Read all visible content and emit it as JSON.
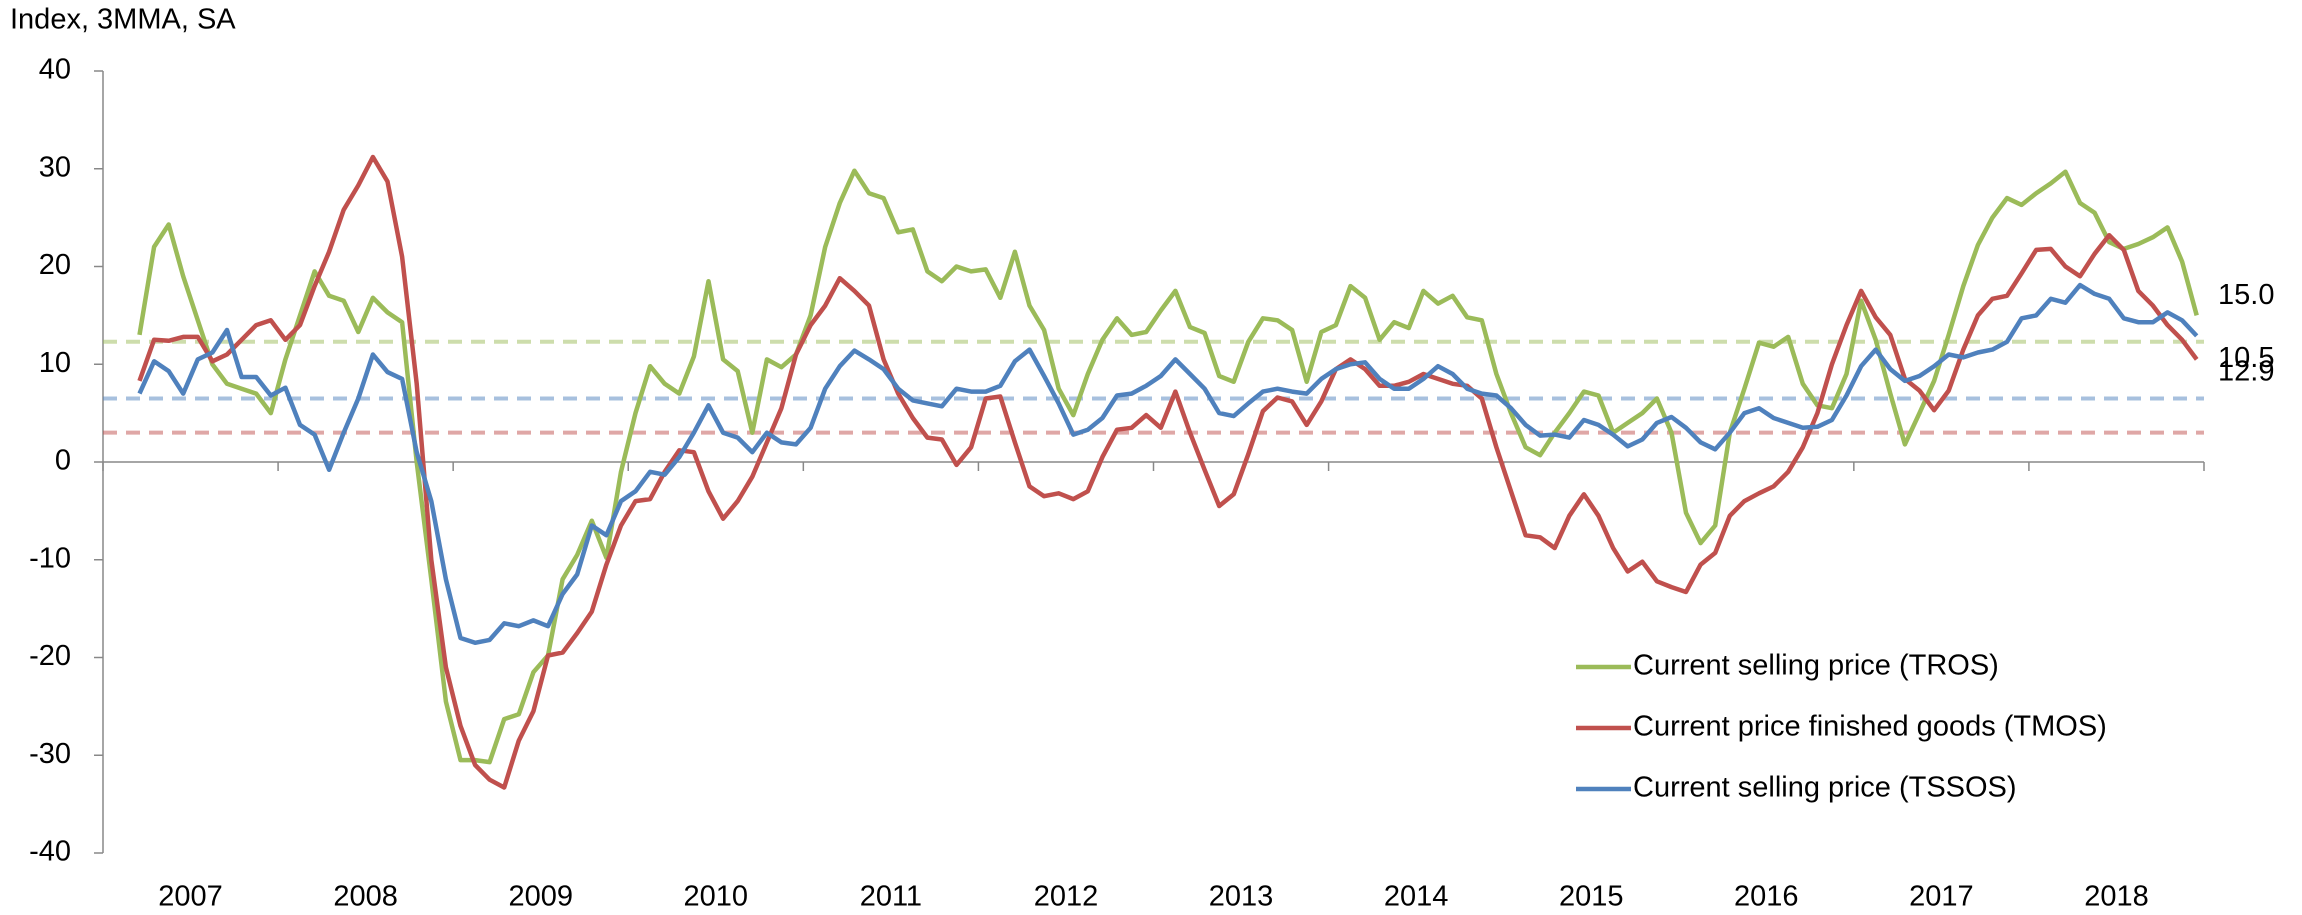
{
  "chart_data": {
    "type": "line",
    "y_axis_label": "Index, 3MMA, SA",
    "ylim": [
      -40,
      40
    ],
    "yticks": [
      -40,
      -30,
      -20,
      -10,
      0,
      10,
      20,
      30,
      40
    ],
    "categories": [
      null,
      null,
      null,
      null,
      "2007",
      null,
      null,
      null,
      null,
      null,
      null,
      null,
      null,
      null,
      null,
      null,
      "2008",
      null,
      null,
      null,
      null,
      null,
      null,
      null,
      null,
      null,
      null,
      null,
      "2009",
      null,
      null,
      null,
      null,
      null,
      null,
      null,
      null,
      null,
      null,
      null,
      "2010",
      null,
      null,
      null,
      null,
      null,
      null,
      null,
      null,
      null,
      null,
      null,
      "2011",
      null,
      null,
      null,
      null,
      null,
      null,
      null,
      null,
      null,
      null,
      null,
      "2012",
      null,
      null,
      null,
      null,
      null,
      null,
      null,
      null,
      null,
      null,
      null,
      "2013",
      null,
      null,
      null,
      null,
      null,
      null,
      null,
      null,
      null,
      null,
      null,
      "2014",
      null,
      null,
      null,
      null,
      null,
      null,
      null,
      null,
      null,
      null,
      null,
      "2015",
      null,
      null,
      null,
      null,
      null,
      null,
      null,
      null,
      null,
      null,
      null,
      "2016",
      null,
      null,
      null,
      null,
      null,
      null,
      null,
      null,
      null,
      null,
      null,
      "2017",
      null,
      null,
      null,
      null,
      null,
      null,
      null,
      null,
      null,
      null,
      null,
      "2018",
      null,
      null,
      null,
      null,
      null
    ],
    "reference_lines": [
      {
        "color": "#9bbb59",
        "value": 12.3
      },
      {
        "color": "#4f81bd",
        "value": 6.5
      },
      {
        "color": "#c0504d",
        "value": 3
      }
    ],
    "series": [
      {
        "name": "Current selling price (TROS)",
        "color": "#9bbb59",
        "values": [
          13,
          22,
          24.3,
          19,
          14.5,
          10,
          8,
          7.5,
          7,
          5,
          10.5,
          15,
          19.5,
          17,
          16.5,
          13.3,
          16.8,
          15.3,
          14.3,
          0,
          -12,
          -24.5,
          -30.5,
          -30.5,
          -30.7,
          -26.3,
          -25.8,
          -21.5,
          -19.8,
          -12,
          -9.5,
          -6,
          -9.8,
          -1,
          5,
          9.8,
          8,
          7,
          10.8,
          18.5,
          10.5,
          9.3,
          3,
          10.5,
          9.7,
          11,
          15,
          22,
          26.5,
          29.8,
          27.5,
          27,
          23.5,
          23.8,
          19.5,
          18.5,
          20,
          19.5,
          19.7,
          16.8,
          21.5,
          16,
          13.5,
          7.5,
          4.8,
          9,
          12.5,
          14.7,
          13,
          13.3,
          15.5,
          17.5,
          13.8,
          13.2,
          8.8,
          8.2,
          12.3,
          14.7,
          14.5,
          13.5,
          8.2,
          13.3,
          14,
          18,
          16.8,
          12.5,
          14.3,
          13.7,
          17.5,
          16.2,
          17,
          14.8,
          14.5,
          9,
          5,
          1.5,
          0.7,
          3,
          5,
          7.2,
          6.8,
          3,
          4,
          5,
          6.5,
          3,
          -5.2,
          -8.3,
          -6.5,
          3,
          7.5,
          12.2,
          11.8,
          12.8,
          8,
          5.8,
          5.5,
          9,
          16.5,
          12.5,
          7,
          1.8,
          5,
          8.3,
          13,
          18,
          22.2,
          25,
          27,
          26.3,
          27.5,
          28.5,
          29.7,
          26.5,
          25.5,
          22.5,
          21.8,
          22.3,
          23,
          24,
          20.5,
          15
        ],
        "value_labels": [
          null,
          null,
          null,
          null,
          null,
          null,
          null,
          null,
          null,
          null,
          null,
          null,
          null,
          null,
          null,
          null,
          null,
          null,
          null,
          null,
          null,
          null,
          null,
          null,
          null,
          null,
          null,
          null,
          null,
          null,
          null,
          null,
          null,
          null,
          null,
          null,
          null,
          null,
          null,
          null,
          null,
          null,
          null,
          null,
          null,
          null,
          null,
          null,
          null,
          null,
          null,
          null,
          null,
          null,
          null,
          null,
          null,
          null,
          null,
          null,
          null,
          null,
          null,
          null,
          null,
          null,
          null,
          null,
          null,
          null,
          null,
          null,
          null,
          null,
          null,
          null,
          null,
          null,
          null,
          null,
          null,
          null,
          null,
          null,
          null,
          null,
          null,
          null,
          null,
          null,
          null,
          null,
          null,
          null,
          null,
          null,
          null,
          null,
          null,
          null,
          null,
          null,
          null,
          null,
          null,
          null,
          null,
          null,
          null,
          null,
          null,
          null,
          null,
          null,
          null,
          null,
          null,
          null,
          null,
          null,
          null,
          null,
          null,
          null,
          null,
          null,
          null,
          null,
          null,
          null,
          null,
          null,
          null,
          null,
          null,
          null,
          null,
          null,
          null,
          null,
          null,
          "15.0"
        ]
      },
      {
        "name": "Current price finished goods (TMOS)",
        "color": "#c0504d",
        "values": [
          8.3,
          12.5,
          12.4,
          12.8,
          12.8,
          10.3,
          11,
          12.5,
          14,
          14.5,
          12.5,
          14,
          18,
          21.5,
          25.8,
          28.3,
          31.2,
          28.7,
          21,
          8,
          -10,
          -21,
          -27,
          -31,
          -32.5,
          -33.3,
          -28.5,
          -25.5,
          -19.8,
          -19.5,
          -17.5,
          -15.3,
          -10.5,
          -6.5,
          -4,
          -3.8,
          -1,
          1.2,
          1,
          -3,
          -5.8,
          -4,
          -1.5,
          2,
          5.5,
          11,
          14,
          16,
          18.8,
          17.5,
          16,
          10.5,
          7,
          4.5,
          2.5,
          2.3,
          -0.3,
          1.5,
          6.5,
          6.7,
          2,
          -2.5,
          -3.5,
          -3.2,
          -3.8,
          -3,
          0.5,
          3.3,
          3.5,
          4.8,
          3.5,
          7.2,
          3,
          -0.8,
          -4.5,
          -3.3,
          0.8,
          5.2,
          6.6,
          6.2,
          3.8,
          6.2,
          9.5,
          10.5,
          9.5,
          7.8,
          7.8,
          8.2,
          9,
          8.5,
          8,
          7.8,
          6.5,
          1.5,
          -3,
          -7.5,
          -7.7,
          -8.8,
          -5.5,
          -3.3,
          -5.5,
          -8.8,
          -11.2,
          -10.2,
          -12.2,
          -12.8,
          -13.3,
          -10.5,
          -9.3,
          -5.5,
          -4,
          -3.2,
          -2.5,
          -1,
          1.5,
          5,
          10,
          14,
          17.5,
          14.8,
          13,
          8.5,
          7.3,
          5.3,
          7.3,
          11.5,
          15,
          16.7,
          17,
          19.3,
          21.7,
          21.8,
          20,
          19,
          21.3,
          23.2,
          21.7,
          17.5,
          16,
          14,
          12.5,
          10.5
        ],
        "value_labels": [
          null,
          null,
          null,
          null,
          null,
          null,
          null,
          null,
          null,
          null,
          null,
          null,
          null,
          null,
          null,
          null,
          null,
          null,
          null,
          null,
          null,
          null,
          null,
          null,
          null,
          null,
          null,
          null,
          null,
          null,
          null,
          null,
          null,
          null,
          null,
          null,
          null,
          null,
          null,
          null,
          null,
          null,
          null,
          null,
          null,
          null,
          null,
          null,
          null,
          null,
          null,
          null,
          null,
          null,
          null,
          null,
          null,
          null,
          null,
          null,
          null,
          null,
          null,
          null,
          null,
          null,
          null,
          null,
          null,
          null,
          null,
          null,
          null,
          null,
          null,
          null,
          null,
          null,
          null,
          null,
          null,
          null,
          null,
          null,
          null,
          null,
          null,
          null,
          null,
          null,
          null,
          null,
          null,
          null,
          null,
          null,
          null,
          null,
          null,
          null,
          null,
          null,
          null,
          null,
          null,
          null,
          null,
          null,
          null,
          null,
          null,
          null,
          null,
          null,
          null,
          null,
          null,
          null,
          null,
          null,
          null,
          null,
          null,
          null,
          null,
          null,
          null,
          null,
          null,
          null,
          null,
          null,
          null,
          null,
          null,
          null,
          null,
          null,
          null,
          null,
          null,
          "10.5"
        ]
      },
      {
        "name": "Current selling price (TSSOS)",
        "color": "#4f81bd",
        "values": [
          7,
          10.3,
          9.3,
          7,
          10.5,
          11.2,
          13.5,
          8.7,
          8.7,
          6.8,
          7.6,
          3.8,
          2.8,
          -0.8,
          3,
          6.5,
          11,
          9.2,
          8.5,
          1,
          -4,
          -12,
          -18,
          -18.5,
          -18.2,
          -16.5,
          -16.8,
          -16.2,
          -16.8,
          -13.5,
          -11.5,
          -6.5,
          -7.5,
          -4,
          -3,
          -1,
          -1.3,
          0.5,
          3,
          5.8,
          3,
          2.5,
          1,
          3,
          2,
          1.8,
          3.5,
          7.5,
          9.8,
          11.4,
          10.5,
          9.5,
          7.5,
          6.3,
          6,
          5.7,
          7.5,
          7.2,
          7.2,
          7.8,
          10.3,
          11.5,
          8.8,
          6,
          2.8,
          3.3,
          4.5,
          6.8,
          7,
          7.8,
          8.8,
          10.5,
          9,
          7.5,
          5,
          4.7,
          6,
          7.2,
          7.5,
          7.2,
          7,
          8.5,
          9.5,
          10,
          10.2,
          8.5,
          7.5,
          7.5,
          8.5,
          9.8,
          9,
          7.5,
          7,
          6.8,
          5.5,
          3.8,
          2.7,
          2.8,
          2.5,
          4.3,
          3.8,
          2.8,
          1.6,
          2.3,
          4,
          4.6,
          3.5,
          2,
          1.3,
          3,
          5,
          5.5,
          4.5,
          4,
          3.5,
          3.6,
          4.3,
          6.8,
          9.8,
          11.5,
          9.5,
          8.3,
          8.8,
          9.8,
          11,
          10.7,
          11.2,
          11.5,
          12.3,
          14.7,
          15,
          16.7,
          16.3,
          18.1,
          17.2,
          16.7,
          14.7,
          14.3,
          14.3,
          15.3,
          14.5,
          12.9
        ],
        "value_labels": [
          null,
          null,
          null,
          null,
          null,
          null,
          null,
          null,
          null,
          null,
          null,
          null,
          null,
          null,
          null,
          null,
          null,
          null,
          null,
          null,
          null,
          null,
          null,
          null,
          null,
          null,
          null,
          null,
          null,
          null,
          null,
          null,
          null,
          null,
          null,
          null,
          null,
          null,
          null,
          null,
          null,
          null,
          null,
          null,
          null,
          null,
          null,
          null,
          null,
          null,
          null,
          null,
          null,
          null,
          null,
          null,
          null,
          null,
          null,
          null,
          null,
          null,
          null,
          null,
          null,
          null,
          null,
          null,
          null,
          null,
          null,
          null,
          null,
          null,
          null,
          null,
          null,
          null,
          null,
          null,
          null,
          null,
          null,
          null,
          null,
          null,
          null,
          null,
          null,
          null,
          null,
          null,
          null,
          null,
          null,
          null,
          null,
          null,
          null,
          null,
          null,
          null,
          null,
          null,
          null,
          null,
          null,
          null,
          null,
          null,
          null,
          null,
          null,
          null,
          null,
          null,
          null,
          null,
          null,
          null,
          null,
          null,
          null,
          null,
          null,
          null,
          null,
          null,
          null,
          null,
          null,
          null,
          null,
          null,
          null,
          null,
          null,
          null,
          null,
          null,
          null,
          "12.9"
        ]
      }
    ]
  }
}
